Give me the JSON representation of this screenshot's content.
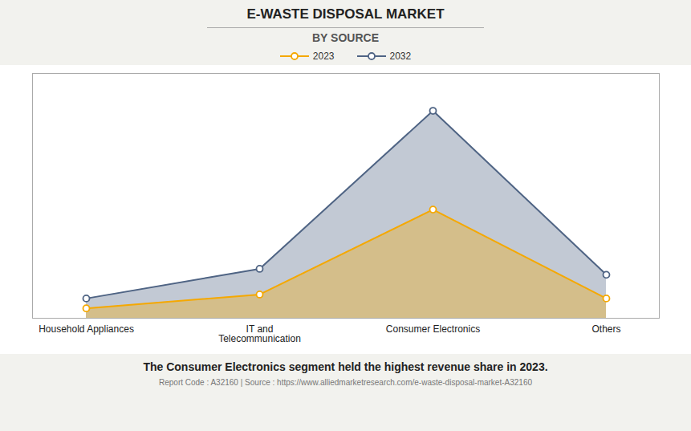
{
  "chart_data": {
    "type": "area",
    "title": "E-WASTE DISPOSAL MARKET",
    "subtitle": "BY SOURCE",
    "categories": [
      "Household Appliances",
      "IT and\nTelecommunication",
      "Consumer Electronics",
      "Others"
    ],
    "series": [
      {
        "name": "2023",
        "color": "#F5A800",
        "values": [
          0.5,
          1.2,
          5.5,
          1.0
        ]
      },
      {
        "name": "2032",
        "color": "#4F6484",
        "values": [
          1.0,
          2.5,
          10.5,
          2.2
        ]
      }
    ],
    "ylim": [
      0,
      12.39
    ],
    "yticks": [],
    "grid": false,
    "legend": "top",
    "tick_labels": "x",
    "marker": "circle",
    "annotations": [
      "The Consumer Electronics segment held the highest revenue share in 2023.",
      "Report Code : A32160  |  Source : https://www.alliedmarketresearch.com/e-waste-disposal-market-A32160"
    ]
  }
}
